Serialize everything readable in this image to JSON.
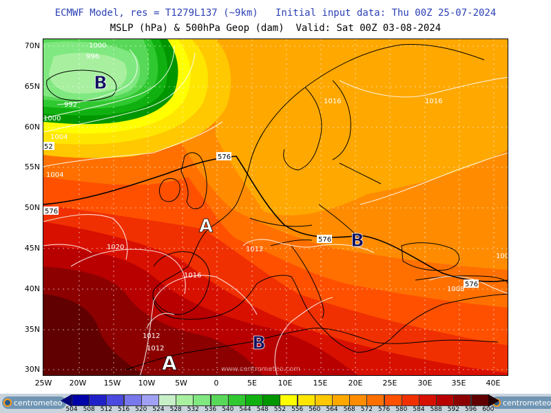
{
  "header": {
    "line1": "ECMWF Model, res = T1279L137 (~9km)   Initial input data: Thu 00Z 25-07-2024",
    "line2": "MSLP (hPa) & 500hPa Geop (dam)  Valid: Sat 00Z 03-08-2024"
  },
  "axes": {
    "lat_labels": [
      "70N",
      "65N",
      "60N",
      "55N",
      "50N",
      "45N",
      "40N",
      "35N",
      "30N"
    ],
    "lon_labels": [
      "25W",
      "20W",
      "15W",
      "10W",
      "5W",
      "0",
      "5E",
      "10E",
      "15E",
      "20E",
      "25E",
      "30E",
      "35E",
      "40E"
    ]
  },
  "pressure_centers": [
    {
      "letter": "B",
      "meaning": "low",
      "color": "#101060"
    },
    {
      "letter": "A",
      "meaning": "high",
      "color": "#ffffff"
    },
    {
      "letter": "B",
      "meaning": "low",
      "color": "#101060"
    },
    {
      "letter": "B",
      "meaning": "low",
      "color": "#101060"
    },
    {
      "letter": "A",
      "meaning": "high",
      "color": "#ffffff"
    }
  ],
  "isobar_labels": [
    "1000",
    "996",
    "992",
    "1000",
    "1004",
    "1004",
    "1020",
    "1016",
    "1016",
    "1012",
    "1012",
    "1012",
    "1016",
    "1008",
    "100"
  ],
  "geop_labels": [
    "576",
    "576",
    "576",
    "576",
    "52"
  ],
  "watermark": "www.centrometeo.com",
  "colorbar": {
    "values": [
      "504",
      "508",
      "512",
      "516",
      "520",
      "524",
      "528",
      "532",
      "536",
      "540",
      "544",
      "548",
      "552",
      "556",
      "560",
      "564",
      "568",
      "572",
      "576",
      "580",
      "584",
      "588",
      "592",
      "596",
      "600"
    ],
    "colors": [
      "#0000a8",
      "#2020c8",
      "#4a4ae0",
      "#7878ec",
      "#a0a0f4",
      "#c8f0c8",
      "#a8f0a0",
      "#80e880",
      "#58d858",
      "#30c830",
      "#10b010",
      "#009600",
      "#ffff00",
      "#ffe600",
      "#ffc800",
      "#ffa800",
      "#ff8c00",
      "#ff7000",
      "#ff5000",
      "#f03000",
      "#d81000",
      "#b80000",
      "#8c0000",
      "#600000",
      "#3c0000"
    ],
    "end_colors": [
      "#00007a",
      "#200000"
    ]
  },
  "logos": {
    "left": "centrometeo",
    "right": "centrometeo"
  }
}
